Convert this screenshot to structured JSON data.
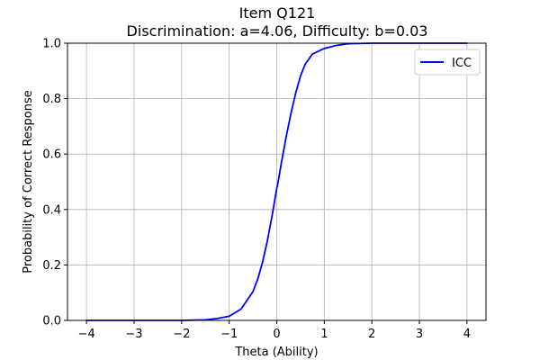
{
  "chart_data": {
    "type": "line",
    "title": "Item Q121",
    "subtitle": "Discrimination: a=4.06, Difficulty: b=0.03",
    "xlabel": "Theta (Ability)",
    "ylabel": "Probability of Correct Response",
    "xlim": [
      -4.4,
      4.4
    ],
    "ylim": [
      0,
      1
    ],
    "xticks": [
      -4,
      -3,
      -2,
      -1,
      0,
      1,
      2,
      3,
      4
    ],
    "yticks": [
      0.0,
      0.2,
      0.4,
      0.6,
      0.8,
      1.0
    ],
    "xtick_labels": [
      "−4",
      "−3",
      "−2",
      "−1",
      "0",
      "1",
      "2",
      "3",
      "4"
    ],
    "ytick_labels": [
      "0.0",
      "0.2",
      "0.4",
      "0.6",
      "0.8",
      "1.0"
    ],
    "grid": true,
    "legend_position": "top-right",
    "series": [
      {
        "name": "ICC",
        "color": "#0000ff",
        "x": [
          -4.0,
          -3.5,
          -3.0,
          -2.5,
          -2.0,
          -1.5,
          -1.25,
          -1.0,
          -0.75,
          -0.5,
          -0.4,
          -0.3,
          -0.2,
          -0.1,
          0.0,
          0.03,
          0.1,
          0.2,
          0.3,
          0.4,
          0.5,
          0.6,
          0.75,
          1.0,
          1.25,
          1.5,
          2.0,
          2.5,
          3.0,
          3.5,
          4.0
        ],
        "y": [
          0.0,
          0.0,
          0.0,
          0.0,
          0.0,
          0.002,
          0.007,
          0.015,
          0.041,
          0.104,
          0.149,
          0.209,
          0.285,
          0.376,
          0.476,
          0.5,
          0.571,
          0.664,
          0.748,
          0.821,
          0.882,
          0.925,
          0.961,
          0.981,
          0.992,
          0.998,
          1.0,
          1.0,
          1.0,
          1.0,
          1.0
        ]
      }
    ]
  }
}
